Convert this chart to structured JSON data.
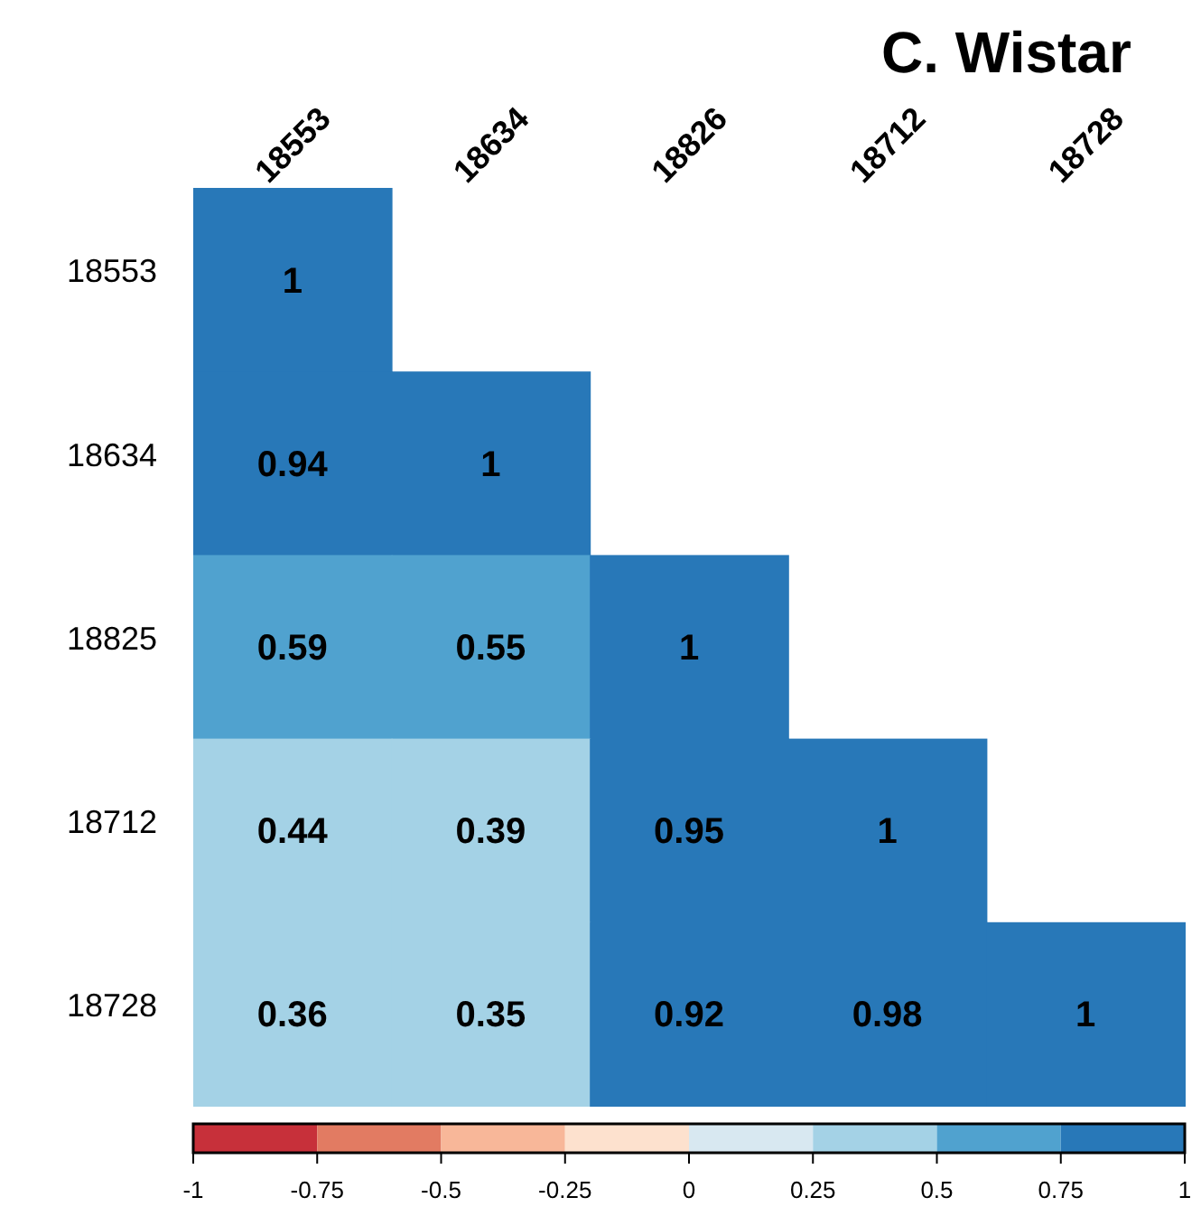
{
  "chart_data": {
    "type": "heatmap",
    "title": "C. Wistar",
    "categories": [
      "18553",
      "18634",
      "18826",
      "18712",
      "18728"
    ],
    "y_categories": [
      "18553",
      "18634",
      "18825",
      "18712",
      "18728"
    ],
    "cells": [
      [
        1,
        null,
        null,
        null,
        null
      ],
      [
        0.94,
        1,
        null,
        null,
        null
      ],
      [
        0.59,
        0.55,
        1,
        null,
        null
      ],
      [
        0.44,
        0.39,
        0.95,
        1,
        null
      ],
      [
        0.36,
        0.35,
        0.92,
        0.98,
        1
      ]
    ],
    "data_labels": true,
    "clim": [
      -1,
      1
    ],
    "cticks": [
      -1,
      -0.75,
      -0.5,
      -0.25,
      0,
      0.25,
      0.5,
      0.75,
      1
    ],
    "colors": [
      "#c7303a",
      "#e27b62",
      "#f8b799",
      "#fde1ce",
      "#d8e8f1",
      "#a4d2e6",
      "#50a2cf",
      "#2878b8"
    ]
  }
}
